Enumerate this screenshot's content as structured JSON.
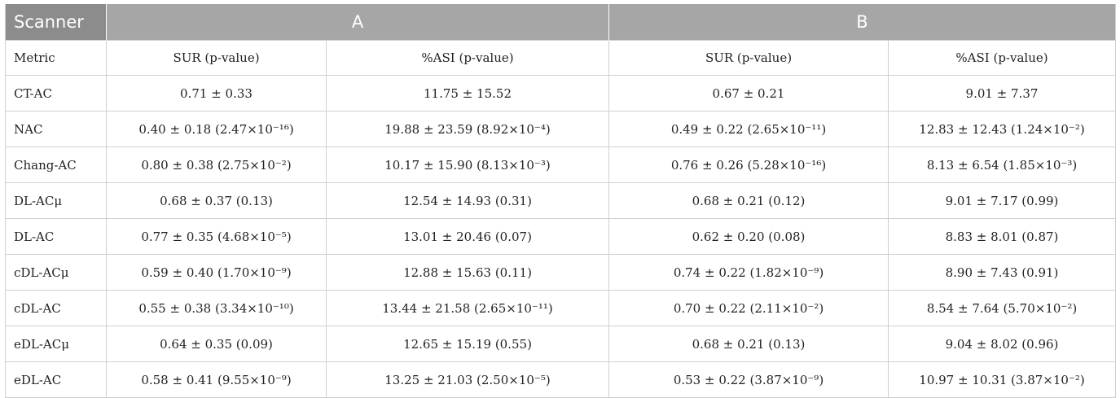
{
  "header": {
    "scanner_label": "Scanner",
    "group_a": "A",
    "group_b": "B"
  },
  "subheader": {
    "metric": "Metric",
    "a_sur": "SUR (p-value)",
    "a_asi": "%ASI (p-value)",
    "b_sur": "SUR (p-value)",
    "b_asi": "%ASI (p-value)"
  },
  "rows": [
    {
      "method": "CT-AC",
      "a_sur": "0.71 ± 0.33",
      "a_asi": "11.75 ± 15.52",
      "b_sur": "0.67 ± 0.21",
      "b_asi": "9.01 ± 7.37"
    },
    {
      "method": "NAC",
      "a_sur": "0.40 ± 0.18 (2.47×10⁻¹⁶)",
      "a_asi": "19.88 ± 23.59 (8.92×10⁻⁴)",
      "b_sur": "0.49 ± 0.22 (2.65×10⁻¹¹)",
      "b_asi": "12.83 ± 12.43 (1.24×10⁻²)"
    },
    {
      "method": "Chang-AC",
      "a_sur": "0.80 ± 0.38 (2.75×10⁻²)",
      "a_asi": "10.17 ± 15.90 (8.13×10⁻³)",
      "b_sur": "0.76 ± 0.26 (5.28×10⁻¹⁶)",
      "b_asi": "8.13 ± 6.54 (1.85×10⁻³)"
    },
    {
      "method": "DL-ACμ",
      "a_sur": "0.68 ± 0.37 (0.13)",
      "a_asi": "12.54 ± 14.93 (0.31)",
      "b_sur": "0.68 ± 0.21 (0.12)",
      "b_asi": "9.01 ± 7.17 (0.99)"
    },
    {
      "method": "DL-AC",
      "a_sur": "0.77 ± 0.35 (4.68×10⁻⁵)",
      "a_asi": "13.01 ± 20.46 (0.07)",
      "b_sur": "0.62 ± 0.20 (0.08)",
      "b_asi": "8.83 ± 8.01 (0.87)"
    },
    {
      "method": "cDL-ACμ",
      "a_sur": "0.59 ± 0.40 (1.70×10⁻⁹)",
      "a_asi": "12.88 ± 15.63 (0.11)",
      "b_sur": "0.74 ± 0.22 (1.82×10⁻⁹)",
      "b_asi": "8.90 ± 7.43 (0.91)"
    },
    {
      "method": "cDL-AC",
      "a_sur": "0.55 ± 0.38 (3.34×10⁻¹⁰)",
      "a_asi": "13.44 ± 21.58 (2.65×10⁻¹¹)",
      "b_sur": "0.70 ± 0.22 (2.11×10⁻²)",
      "b_asi": "8.54 ± 7.64 (5.70×10⁻²)"
    },
    {
      "method": "eDL-ACμ",
      "a_sur": "0.64 ± 0.35 (0.09)",
      "a_asi": "12.65 ± 15.19 (0.55)",
      "b_sur": "0.68 ± 0.21 (0.13)",
      "b_asi": "9.04 ± 8.02 (0.96)"
    },
    {
      "method": "eDL-AC",
      "a_sur": "0.58 ± 0.41 (9.55×10⁻⁹)",
      "a_asi": "13.25 ± 21.03 (2.50×10⁻⁵)",
      "b_sur": "0.53 ± 0.22 (3.87×10⁻⁹)",
      "b_asi": "10.97 ± 10.31 (3.87×10⁻²)"
    }
  ]
}
